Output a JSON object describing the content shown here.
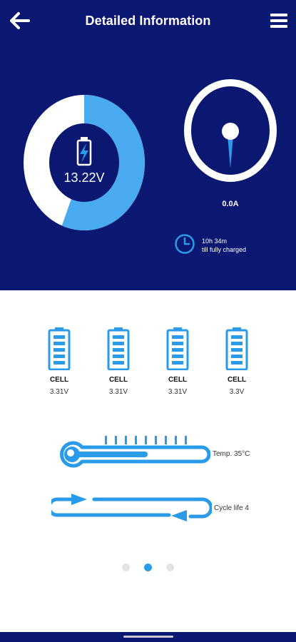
{
  "header": {
    "title": "Detailed Information",
    "back_icon": "arrow-left-icon",
    "menu_icon": "hamburger-menu-icon"
  },
  "battery": {
    "voltage": "13.22V",
    "charge_fraction": 0.56,
    "icon": "battery-charging-icon"
  },
  "current": {
    "value": "0.0A",
    "icon": "gauge-needle-icon"
  },
  "charge_time": {
    "time": "10h 34m",
    "caption": "till fully charged",
    "icon": "clock-icon"
  },
  "cells": [
    {
      "label": "CELL",
      "value": "3.31V"
    },
    {
      "label": "CELL",
      "value": "3.31V"
    },
    {
      "label": "CELL",
      "value": "3.31V"
    },
    {
      "label": "CELL",
      "value": "3.3V"
    }
  ],
  "temperature": {
    "label": "Temp. 35°C",
    "icon": "thermometer-icon"
  },
  "cycle": {
    "label": "Cycle life 4",
    "icon": "cycle-arrows-icon"
  },
  "pagination": {
    "count": 3,
    "active_index": 1
  },
  "colors": {
    "navy": "#0b1871",
    "accent_blue": "#2a9be8",
    "light_blue": "#4aaaf0",
    "white": "#ffffff"
  }
}
